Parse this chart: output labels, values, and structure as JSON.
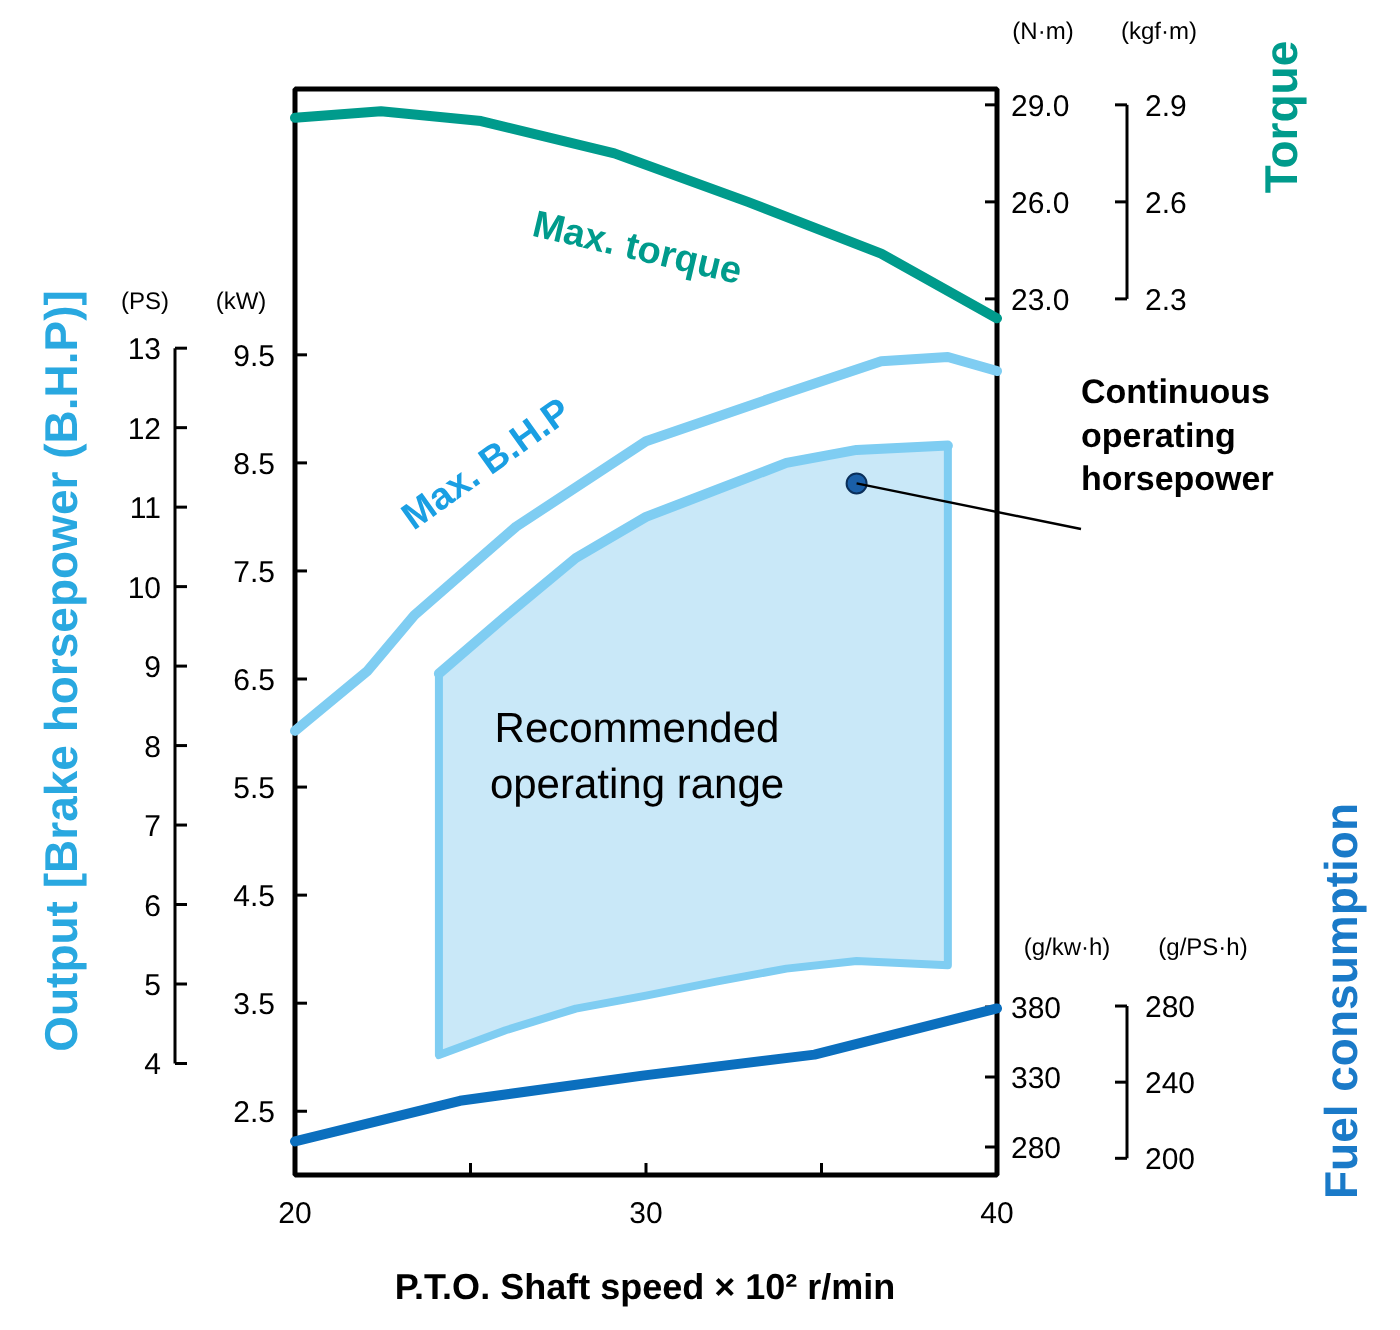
{
  "chart_data": {
    "type": "line",
    "xlabel": "P.T.O. Shaft speed × 10² r/min",
    "ylabel": "Output [Brake horsepower (B.H.P)]",
    "y2label": "Torque",
    "y3label": "Fuel consumption",
    "xlim": [
      20,
      40
    ],
    "xticks": [
      20,
      {
        "value": 25,
        "label": null
      },
      30,
      {
        "value": 35,
        "label": null
      },
      40
    ],
    "ylim": [
      1.91,
      11.96
    ],
    "yticks": [
      2.5,
      3.5,
      4.5,
      5.5,
      6.5,
      7.5,
      8.5,
      9.5
    ],
    "y2lim": [
      -4.09,
      29.49
    ],
    "y2ticks": [
      {
        "value": 23,
        "label": "23.0"
      },
      {
        "value": 26,
        "label": "26.0"
      },
      {
        "value": 29,
        "label": "29.0"
      }
    ],
    "y3lim": [
      260,
      1035.7
    ],
    "y3ticks": [
      280,
      330,
      380
    ],
    "grid": false,
    "legend": false,
    "series": [
      {
        "name": "Max. torque",
        "color": "#009b8c",
        "axis": "y2",
        "x": [
          20,
          22.45,
          25.3,
          29.1,
          32.9,
          36.7,
          40
        ],
        "values": [
          28.6,
          28.8,
          28.5,
          27.5,
          26.0,
          24.4,
          22.4
        ]
      },
      {
        "name": "Max. B.H.P",
        "color": "#7fcdf2",
        "x": [
          20,
          22.05,
          23.4,
          26.3,
          30.0,
          33.85,
          36.7,
          38.6,
          40
        ],
        "values": [
          6.02,
          6.57,
          7.09,
          7.91,
          8.7,
          9.13,
          9.44,
          9.48,
          9.35
        ]
      },
      {
        "name": "Recommended operating range",
        "color": "#7fcdf2",
        "x": [
          24.1,
          26,
          28,
          30,
          32,
          34,
          36,
          38.6
        ],
        "values": [
          6.55,
          7.08,
          7.62,
          8.0,
          8.25,
          8.5,
          8.62,
          8.66
        ],
        "lower": [
          3.02,
          3.25,
          3.45,
          3.57,
          3.7,
          3.82,
          3.89,
          3.85
        ],
        "upper": [
          6.55,
          7.08,
          7.62,
          8.0,
          8.25,
          8.5,
          8.62,
          8.66
        ]
      },
      {
        "color": "#0b6fbe",
        "axis": "y3",
        "x": [
          20,
          24.7,
          29.9,
          34.8,
          40
        ],
        "values": [
          284,
          313,
          331,
          346,
          379
        ]
      }
    ],
    "annotations": [
      "(PS)",
      "13",
      "12",
      "11",
      "10",
      "9",
      "8",
      "7",
      "6",
      "5",
      "4",
      "(kW)",
      "(N·m)",
      "(kgf·m)",
      "2.9",
      "2.6",
      "2.3",
      "(g/kw·h)",
      "(g/PS·h)",
      "280",
      "240",
      "200",
      {
        "text": "Continuous operating horsepower",
        "x": 36.0,
        "y": 8.31
      }
    ]
  }
}
